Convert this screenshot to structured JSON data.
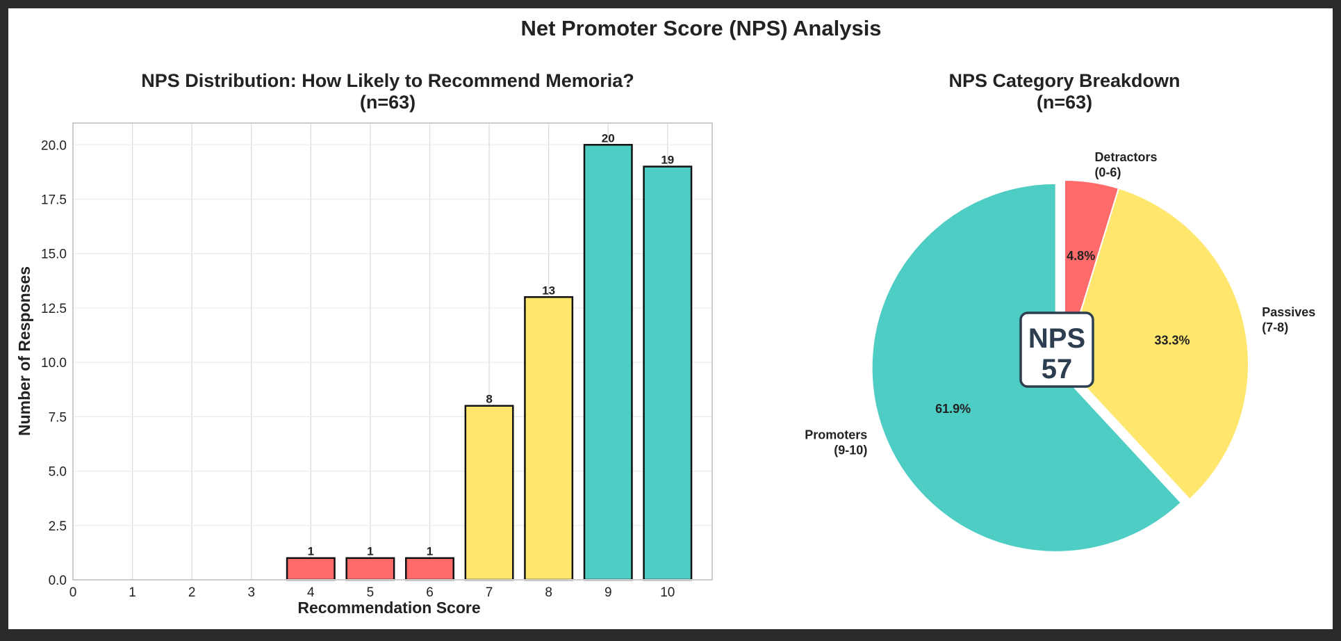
{
  "page_title": "Net Promoter Score (NPS) Analysis",
  "colors": {
    "detractor": "#ff6b6b",
    "passive": "#ffe66d",
    "promoter": "#4ecdc4",
    "nps_badge_text": "#2c3e50"
  },
  "chart_data": [
    {
      "type": "bar",
      "title": "NPS Distribution: How Likely to Recommend Memoria?",
      "subtitle": "(n=63)",
      "xlabel": "Recommendation Score",
      "ylabel": "Number of Responses",
      "xlim": [
        0,
        10.75
      ],
      "ylim": [
        0,
        21
      ],
      "xticks": [
        "0",
        "1",
        "2",
        "3",
        "4",
        "5",
        "6",
        "7",
        "8",
        "9",
        "10"
      ],
      "yticks": [
        "0.0",
        "2.5",
        "5.0",
        "7.5",
        "10.0",
        "12.5",
        "15.0",
        "17.5",
        "20.0"
      ],
      "grid": true,
      "categories": [
        4,
        5,
        6,
        7,
        8,
        9,
        10
      ],
      "values": [
        1,
        1,
        1,
        8,
        13,
        20,
        19
      ],
      "bar_colors": [
        "#ff6b6b",
        "#ff6b6b",
        "#ff6b6b",
        "#ffe66d",
        "#ffe66d",
        "#4ecdc4",
        "#4ecdc4"
      ],
      "data_labels": [
        "1",
        "1",
        "1",
        "8",
        "13",
        "20",
        "19"
      ]
    },
    {
      "type": "pie",
      "title": "NPS Category Breakdown",
      "subtitle": "(n=63)",
      "slices": [
        {
          "label_line1": "Detractors",
          "label_line2": "(0-6)",
          "value": 3,
          "percent": "4.8%",
          "color": "#ff6b6b",
          "exploded": false
        },
        {
          "label_line1": "Passives",
          "label_line2": "(7-8)",
          "value": 21,
          "percent": "33.3%",
          "color": "#ffe66d",
          "exploded": false
        },
        {
          "label_line1": "Promoters",
          "label_line2": "(9-10)",
          "value": 39,
          "percent": "61.9%",
          "color": "#4ecdc4",
          "exploded": true
        }
      ],
      "center_badge": {
        "line1": "NPS",
        "line2": "57"
      }
    }
  ]
}
